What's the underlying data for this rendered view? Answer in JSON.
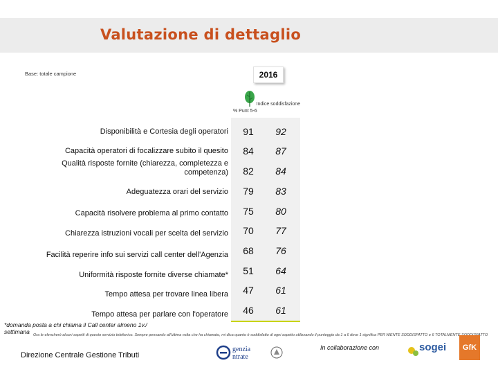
{
  "header": {
    "title": "Valutazione di dettaglio"
  },
  "base_label": "Base: totale campione",
  "year": "2016",
  "columns": {
    "pct": "% Punt 5-6",
    "index": "Indice soddisfazione"
  },
  "rows": [
    {
      "label": "Disponibilità e Cortesia degli operatori",
      "pct": "91",
      "index": "92"
    },
    {
      "label": "Capacità operatori di focalizzare subito il quesito",
      "pct": "84",
      "index": "87"
    },
    {
      "label": "Qualità risposte fornite (chiarezza, completezza e competenza)",
      "pct": "82",
      "index": "84"
    },
    {
      "label": "Adeguatezza orari del servizio",
      "pct": "79",
      "index": "83"
    },
    {
      "label": "Capacità risolvere problema al primo contatto",
      "pct": "75",
      "index": "80"
    },
    {
      "label": "Chiarezza istruzioni vocali per scelta del servizio",
      "pct": "70",
      "index": "77"
    },
    {
      "label": "Facilità reperire info sui servizi call center dell'Agenzia",
      "pct": "68",
      "index": "76"
    },
    {
      "label": "Uniformità risposte fornite diverse chiamate*",
      "pct": "51",
      "index": "64"
    },
    {
      "label": "Tempo attesa per trovare linea libera",
      "pct": "47",
      "index": "61"
    },
    {
      "label": "Tempo attesa per parlare con l'operatore",
      "pct": "46",
      "index": "61"
    }
  ],
  "notes": {
    "footnote": "*domanda posta a chi chiama il Call center almeno 1v./ settimana",
    "description": "Ora le elencherò alcuni aspetti di questo servizio telefonico. Sempre pensando all'ultima volta che ha chiamato, mi dica quanto è soddisfatto di ogni aspetto utilizzando il punteggio da 1 a 6 dove 1 significa",
    "description_tail": "PER NIENTE SODDISFATTO e 6 TOTALMENTE SODDISFATTO"
  },
  "footer": {
    "department": "Direzione Centrale Gestione Tributi",
    "agency_line1": "genzia",
    "agency_line2": "ntrate",
    "collab": "In collaborazione con",
    "sogei": "sogei",
    "gfk": "GfK"
  },
  "colors": {
    "title": "#c8501e",
    "accent_line": "#c8d400",
    "panel": "#f0f0f0",
    "leaf": "#3aa64a"
  }
}
